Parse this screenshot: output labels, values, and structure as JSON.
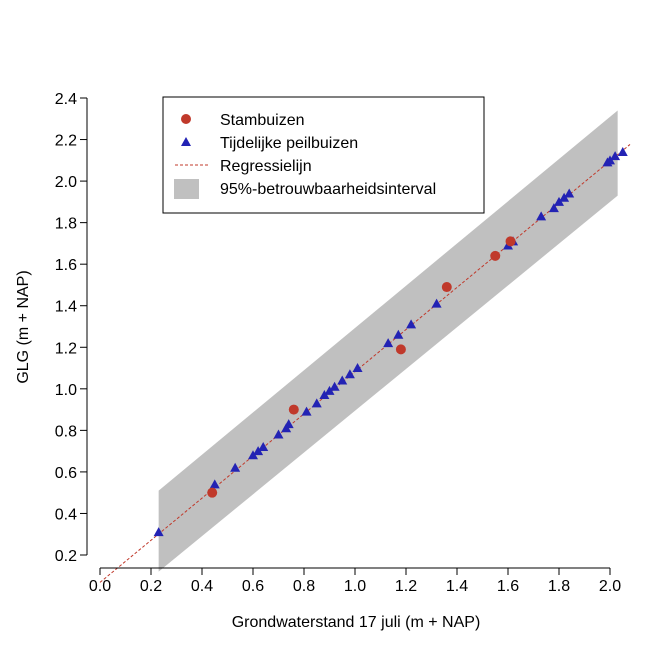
{
  "chart_data": {
    "type": "scatter",
    "xlabel": "Grondwaterstand 17 juli (m + NAP)",
    "ylabel": "GLG (m + NAP)",
    "xlim": [
      0.0,
      2.05
    ],
    "ylim": [
      0.2,
      2.4
    ],
    "x_ticks": [
      "0.0",
      "0.2",
      "0.4",
      "0.6",
      "0.8",
      "1.0",
      "1.2",
      "1.4",
      "1.6",
      "1.8",
      "2.0"
    ],
    "y_ticks": [
      "0.2",
      "0.4",
      "0.6",
      "0.8",
      "1.0",
      "1.2",
      "1.4",
      "1.6",
      "1.8",
      "2.0",
      "2.2",
      "2.4"
    ],
    "legend_position": "top-left",
    "series": [
      {
        "name": "Stambuizen",
        "marker": "circle",
        "color": "#c0392b",
        "points": [
          [
            0.44,
            0.5
          ],
          [
            0.76,
            0.9
          ],
          [
            1.18,
            1.19
          ],
          [
            1.36,
            1.49
          ],
          [
            1.55,
            1.64
          ],
          [
            1.61,
            1.71
          ]
        ]
      },
      {
        "name": "Tijdelijke peilbuizen",
        "marker": "triangle",
        "color": "#2323b4",
        "points": [
          [
            0.23,
            0.31
          ],
          [
            0.45,
            0.54
          ],
          [
            0.53,
            0.62
          ],
          [
            0.6,
            0.68
          ],
          [
            0.62,
            0.7
          ],
          [
            0.64,
            0.72
          ],
          [
            0.7,
            0.78
          ],
          [
            0.73,
            0.81
          ],
          [
            0.74,
            0.83
          ],
          [
            0.81,
            0.89
          ],
          [
            0.85,
            0.93
          ],
          [
            0.88,
            0.97
          ],
          [
            0.9,
            0.99
          ],
          [
            0.92,
            1.01
          ],
          [
            0.95,
            1.04
          ],
          [
            0.98,
            1.07
          ],
          [
            1.01,
            1.1
          ],
          [
            1.13,
            1.22
          ],
          [
            1.17,
            1.26
          ],
          [
            1.22,
            1.31
          ],
          [
            1.32,
            1.41
          ],
          [
            1.6,
            1.69
          ],
          [
            1.62,
            1.71
          ],
          [
            1.73,
            1.83
          ],
          [
            1.78,
            1.87
          ],
          [
            1.8,
            1.9
          ],
          [
            1.82,
            1.92
          ],
          [
            1.84,
            1.94
          ],
          [
            1.99,
            2.09
          ],
          [
            2.0,
            2.1
          ],
          [
            2.02,
            2.12
          ],
          [
            2.05,
            2.14
          ]
        ]
      }
    ],
    "regression": {
      "name": "Regressielijn",
      "color": "#c0392b",
      "line": [
        [
          0.0,
          0.068
        ],
        [
          2.08,
          2.178
        ]
      ]
    },
    "confidence_band": {
      "name": "95%-betrouwbaarheidsinterval",
      "color": "#c0c0c0",
      "polygon": [
        [
          0.23,
          0.12
        ],
        [
          0.23,
          0.51
        ],
        [
          2.03,
          2.34
        ],
        [
          2.03,
          1.93
        ]
      ]
    }
  }
}
